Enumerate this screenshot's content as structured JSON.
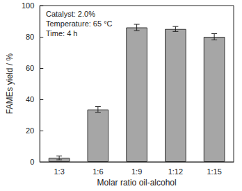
{
  "chart_data": {
    "type": "bar",
    "x_label": "Molar ratio oil-alcohol",
    "y_label": "FAMEs yield / %",
    "annotations": [
      "Catalyst: 2.0%",
      "Temperature: 65 °C",
      "Time: 4 h"
    ],
    "categories": [
      "1:3",
      "1:6",
      "1:9",
      "1:12",
      "1:15"
    ],
    "values": [
      2.5,
      33.5,
      86,
      85,
      80
    ],
    "errors": [
      1.2,
      1.8,
      2,
      1.6,
      2
    ],
    "color": "#a6a6a6",
    "ylim": [
      0,
      100
    ],
    "yticks": [
      0,
      20,
      40,
      60,
      80,
      100
    ],
    "grid": false
  }
}
